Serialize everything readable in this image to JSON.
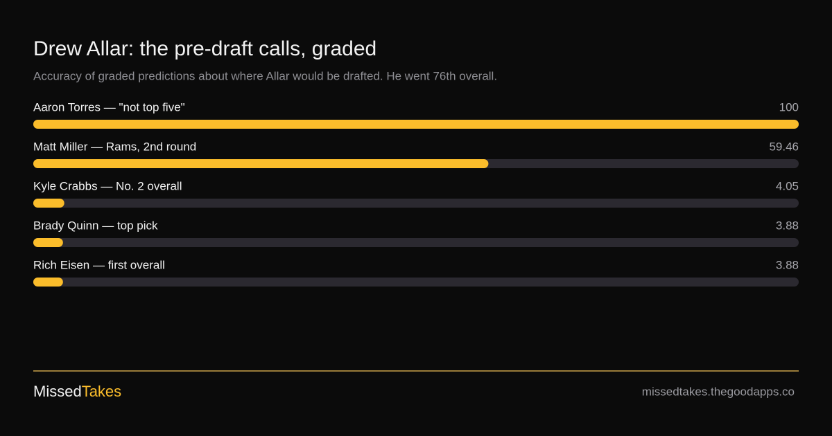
{
  "chart_data": {
    "type": "bar",
    "orientation": "horizontal",
    "title": "Drew Allar: the pre-draft calls, graded",
    "subtitle": "Accuracy of graded predictions about where Allar would be drafted. He went 76th overall.",
    "categories": [
      "Aaron Torres — \"not top five\"",
      "Matt Miller — Rams, 2nd round",
      "Kyle Crabbs — No. 2 overall",
      "Brady Quinn — top pick",
      "Rich Eisen — first overall"
    ],
    "values": [
      100,
      59.46,
      4.05,
      3.88,
      3.88
    ],
    "xlim": [
      0,
      100
    ],
    "color": "#fbbd2b",
    "track_color": "#2b2930"
  },
  "footer": {
    "brand": [
      "Missed",
      "Takes"
    ],
    "url": "missedtakes.thegoodapps.co"
  }
}
